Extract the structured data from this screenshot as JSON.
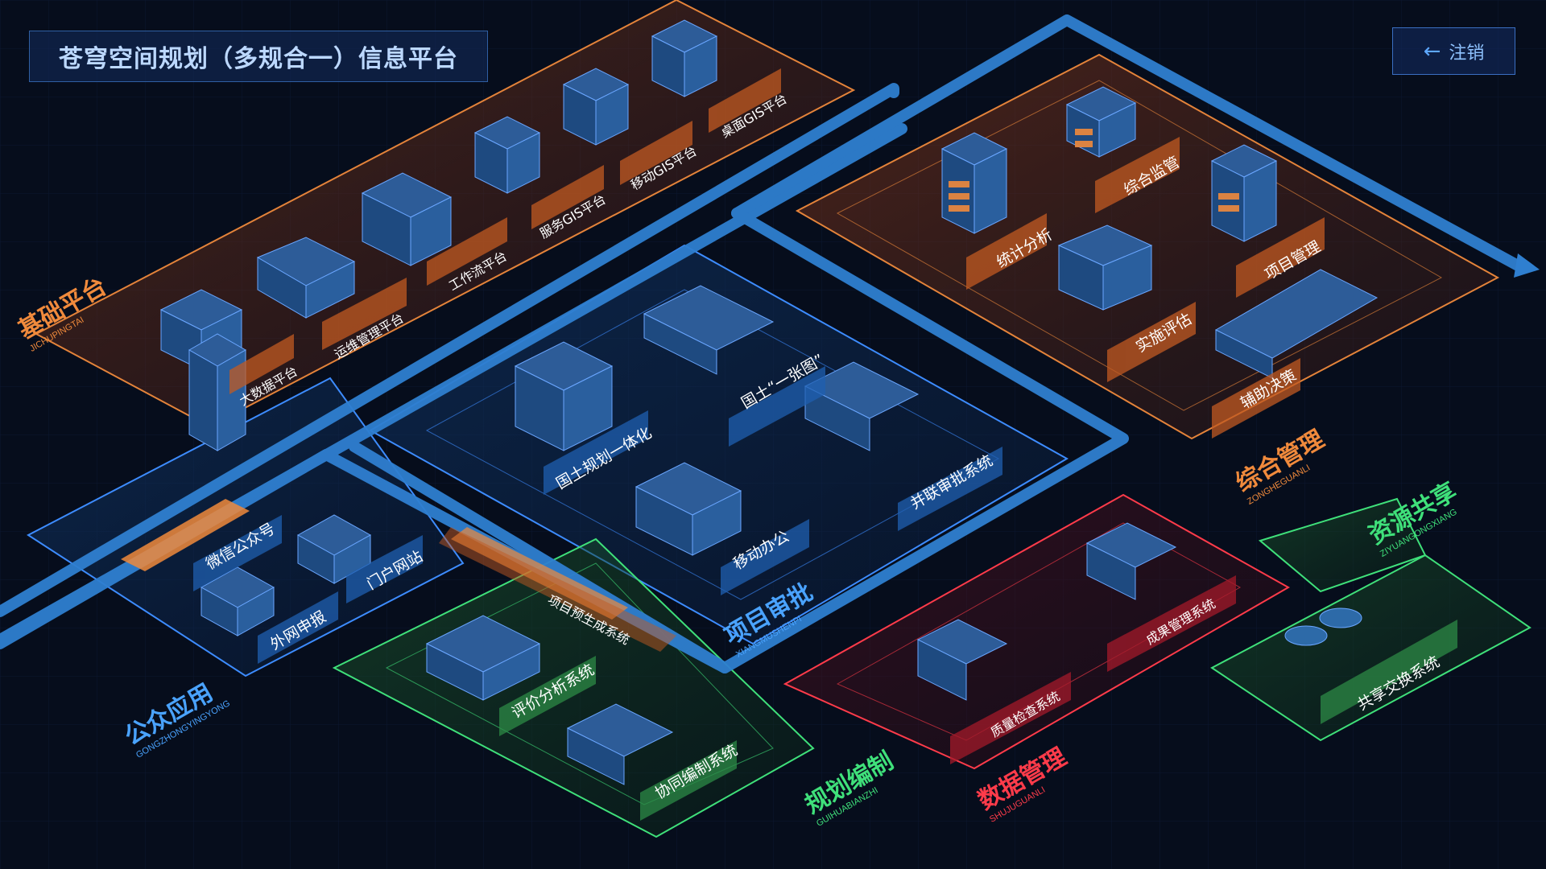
{
  "header": {
    "title": "苍穹空间规划（多规合一）信息平台",
    "logout_label": "注销",
    "logout_icon": "arrow-left-icon"
  },
  "zones": {
    "base": {
      "cn": "基础平台",
      "py": "JICHUPINGTAI",
      "color": "#f08a3c"
    },
    "overall": {
      "cn": "综合管理",
      "py": "ZONGHEGUANLI",
      "color": "#f08a3c"
    },
    "approval": {
      "cn": "项目审批",
      "py": "XIANGMUSHENPI",
      "color": "#4aa3ff"
    },
    "public": {
      "cn": "公众应用",
      "py": "GONGZHONGYINGYONG",
      "color": "#4aa3ff"
    },
    "planning": {
      "cn": "规划编制",
      "py": "GUIHUABIANZHI",
      "color": "#3fe07a"
    },
    "data": {
      "cn": "数据管理",
      "py": "SHUJUGUANLI",
      "color": "#ff3b4a"
    },
    "share": {
      "cn": "资源共享",
      "py": "ZIYUANGONGXIANG",
      "color": "#3fe07a"
    }
  },
  "modules": {
    "base": [
      "大数据平台",
      "运维管理平台",
      "工作流平台",
      "服务GIS平台",
      "移动GIS平台",
      "桌面GIS平台"
    ],
    "overall": [
      "统计分析",
      "综合监管",
      "项目管理",
      "实施评估",
      "辅助决策"
    ],
    "approval": [
      "国土“一张图”",
      "国土规划一体化",
      "并联审批系统",
      "移动办公"
    ],
    "public": [
      "微信公众号",
      "门户网站",
      "外网申报"
    ],
    "middle": "项目预生成系统",
    "planning": [
      "评价分析系统",
      "协同编制系统"
    ],
    "data": [
      "成果管理系统",
      "质量检查系统"
    ],
    "share": [
      "共享交换系统"
    ]
  },
  "colors": {
    "background": "#060d1c",
    "orange": "#f08a3c",
    "blue": "#4aa3ff",
    "green": "#3fe07a",
    "red": "#ff3b4a",
    "road": "#2f7fd0"
  }
}
